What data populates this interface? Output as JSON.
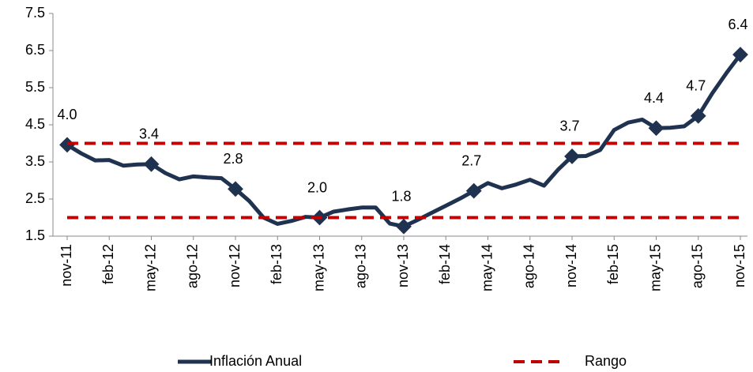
{
  "chart_data": {
    "type": "line",
    "categories": [
      "nov-11",
      null,
      null,
      "feb-12",
      null,
      null,
      "may-12",
      null,
      null,
      "ago-12",
      null,
      null,
      "nov-12",
      null,
      null,
      "feb-13",
      null,
      null,
      "may-13",
      null,
      null,
      "ago-13",
      null,
      null,
      "nov-13",
      null,
      null,
      "feb-14",
      null,
      null,
      "may-14",
      null,
      null,
      "ago-14",
      null,
      null,
      "nov-14",
      null,
      null,
      "feb-15",
      null,
      null,
      "may-15",
      null,
      null,
      "ago-15",
      null,
      null,
      "nov-15"
    ],
    "series": [
      {
        "name": "Inflación Anual",
        "color": "#1f3250",
        "values": [
          3.96,
          3.73,
          3.54,
          3.55,
          3.4,
          3.43,
          3.44,
          3.2,
          3.03,
          3.11,
          3.08,
          3.06,
          2.77,
          2.44,
          2.0,
          1.83,
          1.91,
          2.02,
          2.0,
          2.16,
          2.22,
          2.27,
          2.27,
          1.84,
          1.76,
          1.94,
          2.13,
          2.32,
          2.51,
          2.72,
          2.93,
          2.79,
          2.89,
          3.02,
          2.86,
          3.29,
          3.65,
          3.66,
          3.82,
          4.36,
          4.56,
          4.64,
          4.41,
          4.42,
          4.46,
          4.74,
          5.35,
          5.89,
          6.39
        ],
        "value_labels": [
          "4.0",
          null,
          null,
          null,
          null,
          null,
          "3.4",
          null,
          null,
          null,
          null,
          null,
          "2.8",
          null,
          null,
          null,
          null,
          null,
          "2.0",
          null,
          null,
          null,
          null,
          null,
          "1.8",
          null,
          null,
          null,
          null,
          "2.7",
          null,
          null,
          null,
          null,
          null,
          null,
          "3.7",
          null,
          null,
          null,
          null,
          null,
          "4.4",
          null,
          null,
          "4.7",
          null,
          null,
          "6.4"
        ]
      },
      {
        "name": "Rango",
        "color": "#c00000",
        "dashed": true,
        "levels": [
          2,
          4
        ]
      }
    ],
    "ylim": [
      1.5,
      7.5
    ],
    "yticks": [
      1.5,
      2.5,
      3.5,
      4.5,
      5.5,
      6.5,
      7.5
    ],
    "grid": false,
    "legend": "bottom"
  }
}
